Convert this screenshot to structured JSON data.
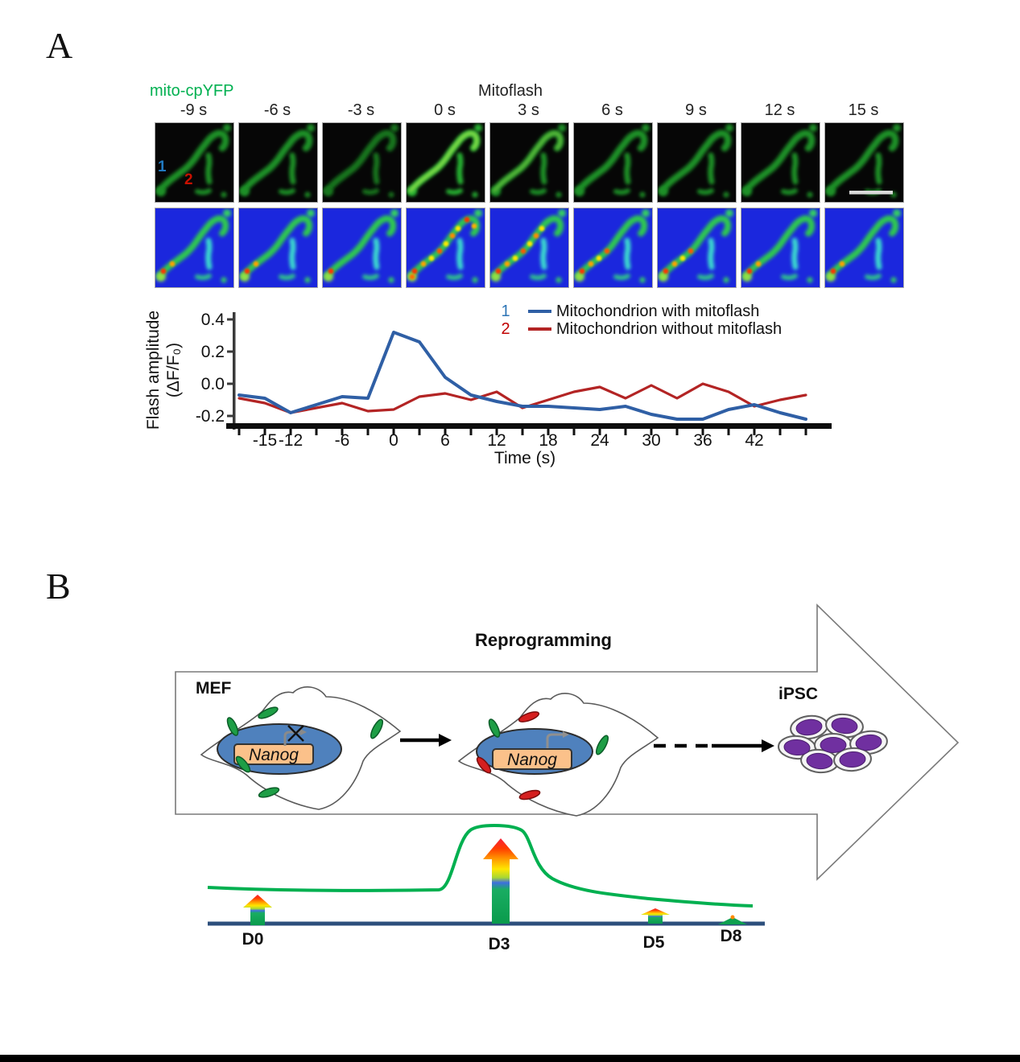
{
  "panelA": {
    "label": "A",
    "probe_label": "mito-cpYFP",
    "event_label": "Mitoflash",
    "frames": [
      {
        "time": "-9 s",
        "intensity": "base",
        "markers": [
          "1",
          "2"
        ],
        "scalebar": false
      },
      {
        "time": "-6 s",
        "intensity": "base",
        "scalebar": false
      },
      {
        "time": "-3 s",
        "intensity": "dim",
        "scalebar": false
      },
      {
        "time": "0 s",
        "intensity": "peak",
        "scalebar": false
      },
      {
        "time": "3 s",
        "intensity": "high",
        "scalebar": false
      },
      {
        "time": "6 s",
        "intensity": "mid",
        "scalebar": false
      },
      {
        "time": "9 s",
        "intensity": "mid",
        "scalebar": false
      },
      {
        "time": "12 s",
        "intensity": "base",
        "scalebar": false
      },
      {
        "time": "15 s",
        "intensity": "base",
        "scalebar": true
      }
    ],
    "marker_colors": {
      "mito1": "#2079c0",
      "mito2": "#c81000"
    },
    "chart_data": {
      "type": "line",
      "x": [
        -18,
        -15,
        -12,
        -9,
        -6,
        -3,
        0,
        3,
        6,
        9,
        12,
        15,
        18,
        21,
        24,
        27,
        30,
        33,
        36,
        39,
        42,
        45,
        48
      ],
      "series": [
        {
          "marker": "1",
          "name": "Mitochondrion with mitoflash",
          "color": "#2f5fa5",
          "values": [
            -0.07,
            -0.09,
            -0.18,
            -0.13,
            -0.08,
            -0.09,
            0.32,
            0.26,
            0.04,
            -0.07,
            -0.11,
            -0.14,
            -0.14,
            -0.15,
            -0.16,
            -0.14,
            -0.19,
            -0.22,
            -0.22,
            -0.16,
            -0.13,
            -0.18,
            -0.22
          ]
        },
        {
          "marker": "2",
          "name": "Mitochondrion without mitoflash",
          "color": "#b32424",
          "values": [
            -0.09,
            -0.12,
            -0.18,
            -0.15,
            -0.12,
            -0.17,
            -0.16,
            -0.08,
            -0.06,
            -0.1,
            -0.05,
            -0.15,
            -0.1,
            -0.05,
            -0.02,
            -0.09,
            -0.01,
            -0.09,
            0.0,
            -0.05,
            -0.14,
            -0.1,
            -0.07
          ]
        }
      ],
      "xlabel": "Time (s)",
      "ylabel_line1": "Flash amplitude",
      "ylabel_line2": "(ΔF/F₀)",
      "y_tick_labels": [
        "0.4",
        "0.2",
        "0.0",
        "-0.2"
      ],
      "y_tick_values": [
        0.4,
        0.2,
        0.0,
        -0.2
      ],
      "x_tick_labels": [
        -15,
        -12,
        -6,
        0,
        6,
        12,
        18,
        24,
        30,
        36,
        42
      ],
      "ylim": [
        -0.28,
        0.45
      ],
      "legend_position": "top-center",
      "grid": false
    }
  },
  "panelB": {
    "label": "B",
    "title": "Reprogramming",
    "mef_label": "MEF",
    "ipsc_label": "iPSC",
    "gene_label": "Nanog",
    "timeline": {
      "days": [
        "D0",
        "D3",
        "D5",
        "D8"
      ]
    },
    "flux_arrows": [
      {
        "day": "D0",
        "size": "small"
      },
      {
        "day": "D3",
        "size": "large"
      },
      {
        "day": "D5",
        "size": "tiny"
      },
      {
        "day": "D8",
        "size": "minimal"
      }
    ],
    "colors": {
      "nucleus_blue": "#4f81bd",
      "gene_box_peach": "#fbc18a",
      "mito_green": "#1e9e46",
      "mito_red": "#d51f1f",
      "ipsc_purple": "#7030a0",
      "expression_curve_green": "#00b050",
      "timeline_blue": "#2d4f7c"
    }
  }
}
